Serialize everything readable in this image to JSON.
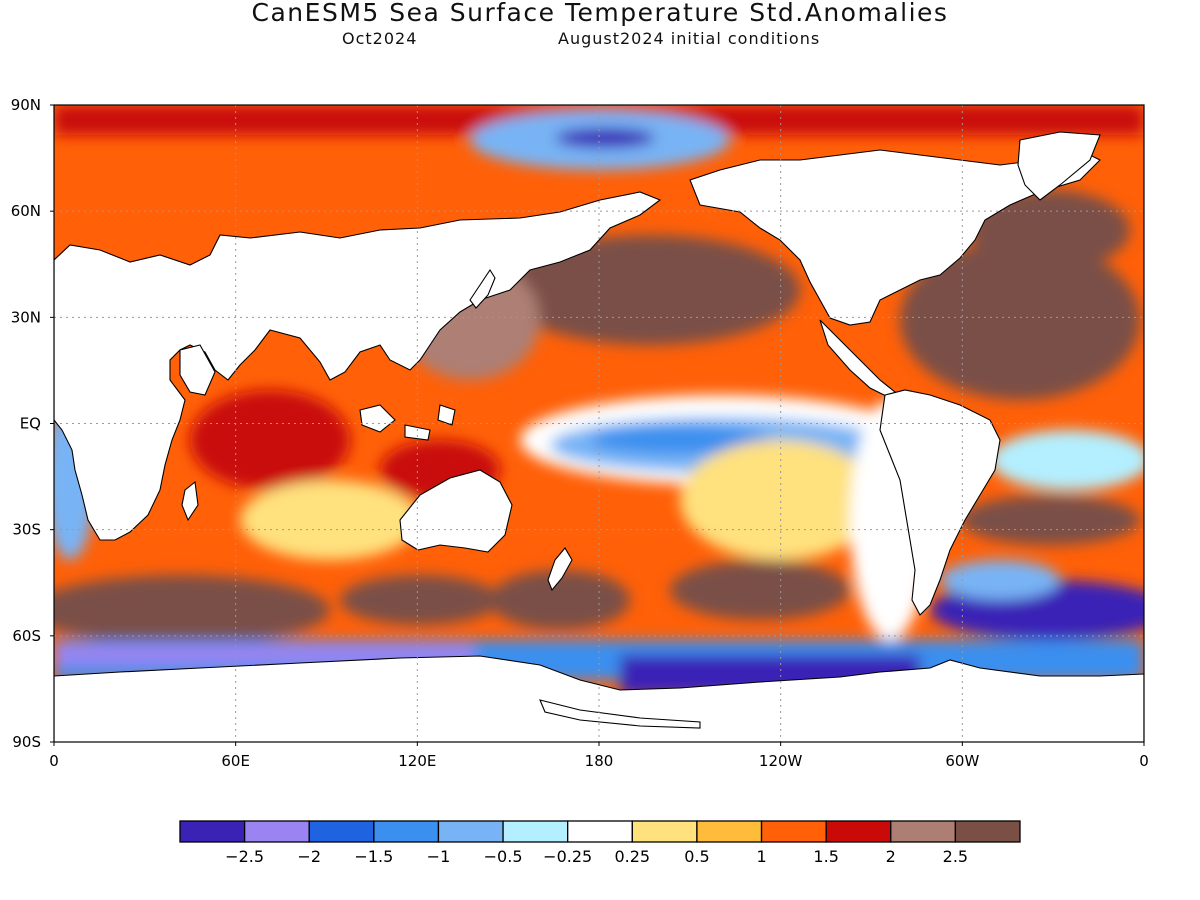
{
  "title": "CanESM5 Sea Surface Temperature Std.Anomalies",
  "subtitle_left": "Oct2024",
  "subtitle_right": "August2024 initial conditions",
  "map": {
    "lat_labels": [
      "90N",
      "60N",
      "30N",
      "EQ",
      "30S",
      "60S",
      "90S"
    ],
    "lat_values": [
      90,
      60,
      30,
      0,
      -30,
      -60,
      -90
    ],
    "lon_labels": [
      "0",
      "60E",
      "120E",
      "180",
      "120W",
      "60W",
      "0"
    ],
    "lon_values": [
      0,
      60,
      120,
      180,
      240,
      300,
      360
    ],
    "grid_style": "dotted"
  },
  "colorbar": {
    "tick_labels": [
      "-2.5",
      "-2",
      "-1.5",
      "-1",
      "-0.5",
      "-0.25",
      "0.25",
      "0.5",
      "1",
      "1.5",
      "2",
      "2.5"
    ],
    "colors": [
      "#3b22b6",
      "#9a84f2",
      "#1f63e0",
      "#3b8fef",
      "#78b4f5",
      "#b3efff",
      "#ffffff",
      "#ffe17e",
      "#ffbc3b",
      "#ff6008",
      "#c90a08",
      "#ad7f74",
      "#7a4f46"
    ]
  }
}
